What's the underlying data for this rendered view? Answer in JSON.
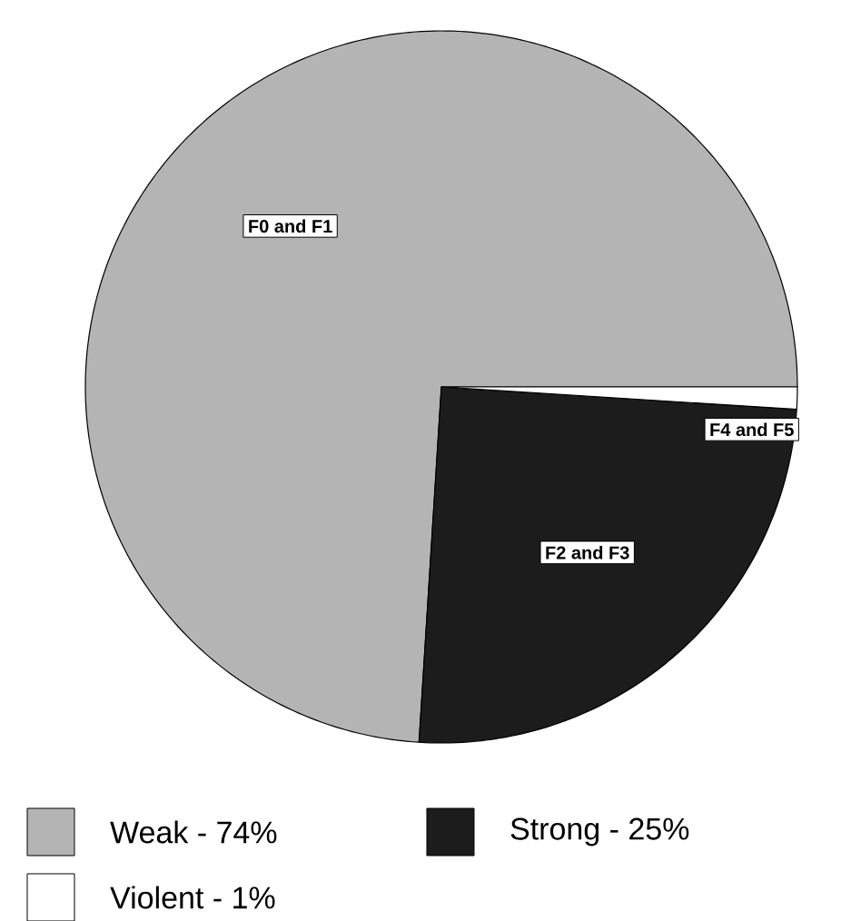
{
  "chart_data": {
    "type": "pie",
    "categories": [
      "Weak - 74%",
      "Strong - 25%",
      "Violent - 1%"
    ],
    "values": [
      74,
      25,
      1
    ],
    "colors": [
      "#b4b4b4",
      "#1c1c1c",
      "#ffffff"
    ],
    "annotations": [
      "F0 and F1",
      "F2 and F3",
      "F4 and F5"
    ],
    "legend": "bottom"
  }
}
